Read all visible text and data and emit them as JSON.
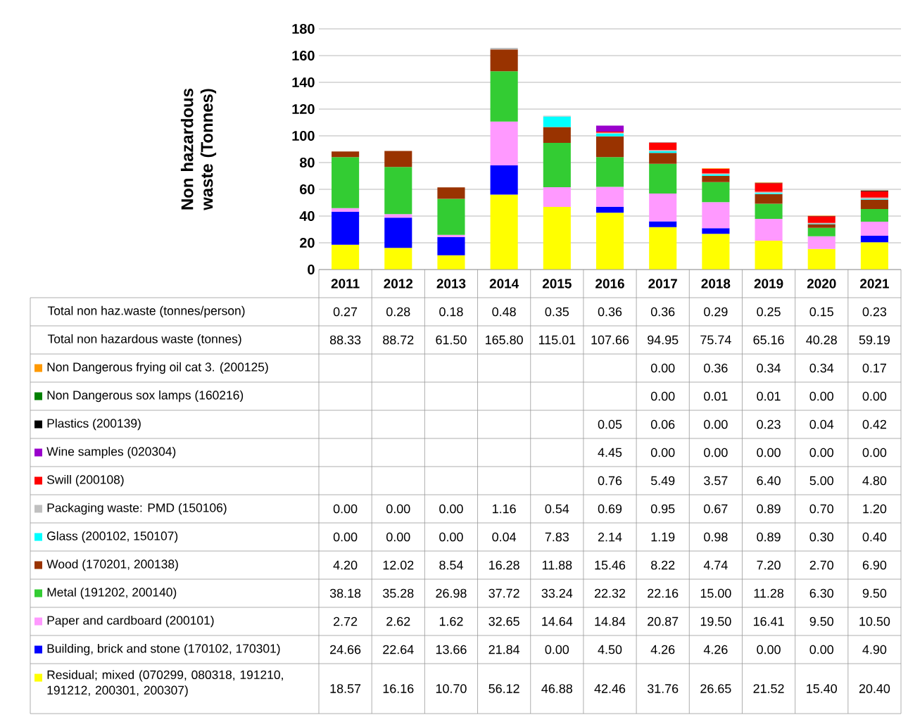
{
  "chart_data": {
    "type": "bar",
    "stacked": true,
    "ylabel": "Non hazardous waste (Tonnes)",
    "categories": [
      "2011",
      "2012",
      "2013",
      "2014",
      "2015",
      "2016",
      "2017",
      "2018",
      "2019",
      "2020",
      "2021"
    ],
    "ylim": [
      0,
      180
    ],
    "yticks": [
      0,
      20,
      40,
      60,
      80,
      100,
      120,
      140,
      160,
      180
    ],
    "grid": "y",
    "legend": "bottom left",
    "series": [
      {
        "name": "Residual; mixed (070299, 080318, 191210, 191212, 200301, 200307)",
        "color": "#ffff00",
        "values": [
          18.57,
          16.16,
          10.7,
          56.12,
          46.88,
          42.46,
          31.76,
          26.65,
          21.52,
          15.4,
          20.4
        ],
        "value_labels": [
          "18.57",
          "16.16",
          "10.70",
          "56.12",
          "46.88",
          "42.46",
          "31.76",
          "26.65",
          "21.52",
          "15.40",
          "20.40"
        ]
      },
      {
        "name": "Building, brick and stone (170102, 170301)",
        "color": "#0000ff",
        "values": [
          24.66,
          22.64,
          13.66,
          21.84,
          0.0,
          4.5,
          4.26,
          4.26,
          0.0,
          0.0,
          4.9
        ],
        "value_labels": [
          "24.66",
          "22.64",
          "13.66",
          "21.84",
          "0.00",
          "4.50",
          "4.26",
          "4.26",
          "0.00",
          "0.00",
          "4.90"
        ]
      },
      {
        "name": "Paper and cardboard (200101)",
        "color": "#ff99ff",
        "values": [
          2.72,
          2.62,
          1.62,
          32.65,
          14.64,
          14.84,
          20.87,
          19.5,
          16.41,
          9.5,
          10.5
        ],
        "value_labels": [
          "2.72",
          "2.62",
          "1.62",
          "32.65",
          "14.64",
          "14.84",
          "20.87",
          "19.50",
          "16.41",
          "9.50",
          "10.50"
        ]
      },
      {
        "name": "Metal (191202, 200140)",
        "color": "#33cc33",
        "values": [
          38.18,
          35.28,
          26.98,
          37.72,
          33.24,
          22.32,
          22.16,
          15.0,
          11.28,
          6.3,
          9.5
        ],
        "value_labels": [
          "38.18",
          "35.28",
          "26.98",
          "37.72",
          "33.24",
          "22.32",
          "22.16",
          "15.00",
          "11.28",
          "6.30",
          "9.50"
        ]
      },
      {
        "name": "Wood (170201, 200138)",
        "color": "#993300",
        "values": [
          4.2,
          12.02,
          8.54,
          16.28,
          11.88,
          15.46,
          8.22,
          4.74,
          7.2,
          2.7,
          6.9
        ],
        "value_labels": [
          "4.20",
          "12.02",
          "8.54",
          "16.28",
          "11.88",
          "15.46",
          "8.22",
          "4.74",
          "7.20",
          "2.70",
          "6.90"
        ]
      },
      {
        "name": "Glass (200102, 150107)",
        "color": "#00ffff",
        "values": [
          0.0,
          0.0,
          0.0,
          0.04,
          7.83,
          2.14,
          1.19,
          0.98,
          0.89,
          0.3,
          0.4
        ],
        "value_labels": [
          "0.00",
          "0.00",
          "0.00",
          "0.04",
          "7.83",
          "2.14",
          "1.19",
          "0.98",
          "0.89",
          "0.30",
          "0.40"
        ]
      },
      {
        "name": "Packaging waste: PMD (150106)",
        "color": "#c0c0c0",
        "values": [
          0.0,
          0.0,
          0.0,
          1.16,
          0.54,
          0.69,
          0.95,
          0.67,
          0.89,
          0.7,
          1.2
        ],
        "value_labels": [
          "0.00",
          "0.00",
          "0.00",
          "1.16",
          "0.54",
          "0.69",
          "0.95",
          "0.67",
          "0.89",
          "0.70",
          "1.20"
        ]
      },
      {
        "name": "Swill (200108)",
        "color": "#ff0000",
        "values": [
          null,
          null,
          null,
          null,
          null,
          0.76,
          5.49,
          3.57,
          6.4,
          5.0,
          4.8
        ],
        "value_labels": [
          null,
          null,
          null,
          null,
          null,
          "0.76",
          "5.49",
          "3.57",
          "6.40",
          "5.00",
          "4.80"
        ]
      },
      {
        "name": "Wine samples (020304)",
        "color": "#9900cc",
        "values": [
          null,
          null,
          null,
          null,
          null,
          4.45,
          0.0,
          0.0,
          0.0,
          0.0,
          0.0
        ],
        "value_labels": [
          null,
          null,
          null,
          null,
          null,
          "4.45",
          "0.00",
          "0.00",
          "0.00",
          "0.00",
          "0.00"
        ]
      },
      {
        "name": "Plastics (200139)",
        "color": "#000000",
        "values": [
          null,
          null,
          null,
          null,
          null,
          0.05,
          0.06,
          0.0,
          0.23,
          0.04,
          0.42
        ],
        "value_labels": [
          null,
          null,
          null,
          null,
          null,
          "0.05",
          "0.06",
          "0.00",
          "0.23",
          "0.04",
          "0.42"
        ]
      },
      {
        "name": "Non Dangerous sox lamps (160216)",
        "color": "#008000",
        "values": [
          null,
          null,
          null,
          null,
          null,
          null,
          0.0,
          0.01,
          0.01,
          0.0,
          0.0
        ],
        "value_labels": [
          null,
          null,
          null,
          null,
          null,
          null,
          "0.00",
          "0.01",
          "0.01",
          "0.00",
          "0.00"
        ]
      },
      {
        "name": "Non Dangerous frying oil cat 3. (200125)",
        "color": "#ff9900",
        "values": [
          null,
          null,
          null,
          null,
          null,
          null,
          0.0,
          0.36,
          0.34,
          0.34,
          0.17
        ],
        "value_labels": [
          null,
          null,
          null,
          null,
          null,
          null,
          "0.00",
          "0.36",
          "0.34",
          "0.34",
          "0.17"
        ]
      }
    ],
    "annotations": [
      "Total non haz.waste (tonnes/person)",
      "Total non hazardous waste (tonnes)",
      "0.27",
      "0.28",
      "0.18",
      "0.48",
      "0.35",
      "0.36",
      "0.36",
      "0.29",
      "0.25",
      "0.15",
      "0.23",
      "88.33",
      "88.72",
      "61.50",
      "165.80",
      "115.01",
      "107.66",
      "94.95",
      "75.74",
      "65.16",
      "40.28",
      "59.19"
    ]
  }
}
